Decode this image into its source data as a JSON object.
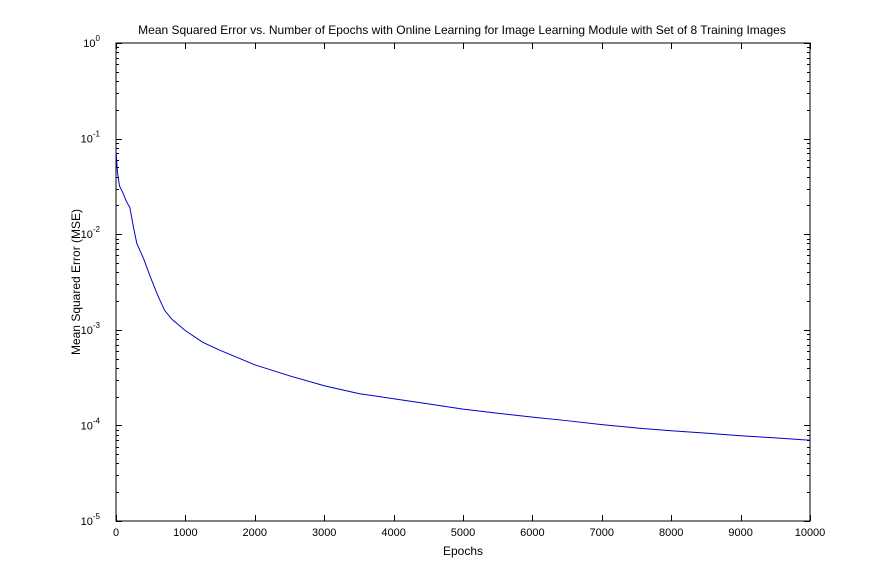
{
  "chart_data": {
    "type": "line",
    "title": "Mean Squared Error vs. Number of Epochs with Online Learning for Image Learning Module with Set of 8 Training Images",
    "xlabel": "Epochs",
    "ylabel": "Mean Squared Error (MSE)",
    "xlim": [
      0,
      10000
    ],
    "ylim": [
      1e-05,
      1
    ],
    "yscale": "log",
    "grid": false,
    "x_ticks": [
      0,
      1000,
      2000,
      3000,
      4000,
      5000,
      6000,
      7000,
      8000,
      9000,
      10000
    ],
    "y_ticks": [
      {
        "value": 1e-05,
        "base": "10",
        "exp": "-5"
      },
      {
        "value": 0.0001,
        "base": "10",
        "exp": "-4"
      },
      {
        "value": 0.001,
        "base": "10",
        "exp": "-3"
      },
      {
        "value": 0.01,
        "base": "10",
        "exp": "-2"
      },
      {
        "value": 0.1,
        "base": "10",
        "exp": "-1"
      },
      {
        "value": 1,
        "base": "10",
        "exp": "0"
      }
    ],
    "line_color": "#0000cc",
    "series": [
      {
        "x": [
          0,
          20,
          50,
          100,
          150,
          200,
          250,
          300,
          400,
          500,
          600,
          700,
          800,
          1000,
          1250,
          1500,
          2000,
          2500,
          3000,
          3500,
          4000,
          4500,
          5000,
          5500,
          6000,
          6500,
          7000,
          7500,
          8000,
          8500,
          9000,
          9500,
          10000
        ],
        "y": [
          0.075,
          0.045,
          0.032,
          0.027,
          0.022,
          0.019,
          0.012,
          0.008,
          0.0055,
          0.0035,
          0.0023,
          0.0016,
          0.0013,
          0.00098,
          0.00074,
          0.00061,
          0.00043,
          0.00033,
          0.00026,
          0.000215,
          0.00019,
          0.000168,
          0.000148,
          0.000134,
          0.000122,
          0.000112,
          0.000102,
          9.4e-05,
          8.8e-05,
          8.3e-05,
          7.8e-05,
          7.4e-05,
          7e-05
        ]
      }
    ]
  }
}
